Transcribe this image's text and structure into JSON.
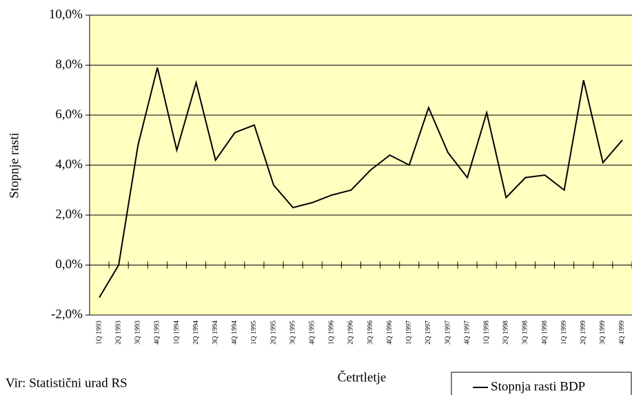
{
  "chart_data": {
    "type": "line",
    "x_label": "Četrtletje",
    "y_label": "Stopnje rasti",
    "source": "Vir: Statistični urad RS",
    "categories": [
      "1Q 1993",
      "2Q 1993",
      "3Q 1993",
      "4Q 1993",
      "1Q 1994",
      "2Q 1994",
      "3Q 1994",
      "4Q 1994",
      "1Q 1995",
      "2Q 1995",
      "3Q 1995",
      "4Q 1995",
      "1Q 1996",
      "2Q 1996",
      "3Q 1996",
      "4Q 1996",
      "1Q 1997",
      "2Q 1997",
      "3Q 1997",
      "4Q 1997",
      "1Q 1998",
      "2Q 1998",
      "3Q 1998",
      "4Q 1998",
      "1Q 1999",
      "2Q 1999",
      "3Q 1999",
      "4Q 1999"
    ],
    "series": [
      {
        "name": "Stopnja rasti BDP",
        "color": "#000000",
        "values": [
          -1.3,
          0.0,
          4.8,
          7.9,
          4.6,
          7.3,
          4.2,
          5.3,
          5.6,
          3.2,
          2.3,
          2.5,
          2.8,
          3.0,
          3.8,
          4.4,
          4.0,
          6.3,
          4.5,
          3.5,
          6.1,
          2.7,
          3.5,
          3.6,
          3.0,
          7.4,
          4.1,
          5.0
        ]
      }
    ],
    "ylim": [
      -2,
      10
    ],
    "yticks": [
      {
        "value": -2,
        "label": "-2,0%"
      },
      {
        "value": 0,
        "label": "0,0%"
      },
      {
        "value": 2,
        "label": "2,0%"
      },
      {
        "value": 4,
        "label": "4,0%"
      },
      {
        "value": 6,
        "label": "6,0%"
      },
      {
        "value": 8,
        "label": "8,0%"
      },
      {
        "value": 10,
        "label": "10,0%"
      }
    ],
    "grid": true,
    "background": "#FFFFC0",
    "legend": "bottom-right"
  }
}
